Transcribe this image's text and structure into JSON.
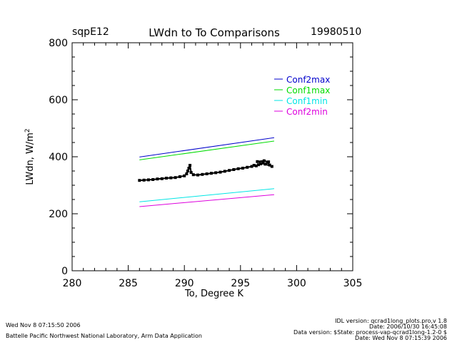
{
  "header": {
    "site": "sqpE12",
    "title": "LWdn to To Comparisons",
    "date": "19980510"
  },
  "footer": {
    "left_line1": "Wed Nov  8 07:15:50 2006",
    "left_line2": "Battelle Pacific Northwest National Laboratory, Arm Data Application",
    "right_line1": "IDL version: qcrad1long_plots.pro,v 1.8",
    "right_line2": "Date: 2006/10/30 16:45:08",
    "right_line3": "Data version: $State: process-vap-qcrad1long-1.2-0 $",
    "right_line4": "Date: Wed Nov  8 07:15:39 2006"
  },
  "chart_data": {
    "type": "scatter",
    "title": "LWdn to To Comparisons",
    "xlabel": "To, Degree K",
    "ylabel": "LWdn, W/m",
    "ylabel_superscript": "2",
    "xlim": [
      280,
      305
    ],
    "ylim": [
      0,
      800
    ],
    "xticks": [
      280,
      285,
      290,
      295,
      300,
      305
    ],
    "yticks": [
      0,
      200,
      400,
      600,
      800
    ],
    "grid": false,
    "legend_position": "top-right",
    "lines": [
      {
        "name": "Conf2max",
        "color": "#0000cc",
        "x": [
          286,
          298
        ],
        "y": [
          399,
          467
        ]
      },
      {
        "name": "Conf1max",
        "color": "#00dd00",
        "x": [
          286,
          298
        ],
        "y": [
          389,
          455
        ]
      },
      {
        "name": "Conf1min",
        "color": "#00e5e5",
        "x": [
          286,
          298
        ],
        "y": [
          242,
          288
        ]
      },
      {
        "name": "Conf2min",
        "color": "#dd00dd",
        "x": [
          286,
          298
        ],
        "y": [
          225,
          267
        ]
      }
    ],
    "observations": {
      "color": "#000000",
      "x": [
        286.0,
        286.4,
        286.8,
        287.2,
        287.6,
        288.0,
        288.4,
        288.8,
        289.2,
        289.6,
        290.0,
        290.2,
        290.3,
        290.4,
        290.5,
        290.6,
        290.8,
        291.2,
        291.6,
        292.0,
        292.4,
        292.8,
        293.2,
        293.6,
        294.0,
        294.4,
        294.8,
        295.2,
        295.6,
        296.0,
        296.2,
        296.4,
        296.6,
        296.8,
        297.0,
        297.2,
        297.4,
        297.6,
        297.8,
        296.5,
        297.1,
        297.5
      ],
      "y": [
        317,
        318,
        319,
        320,
        322,
        323,
        325,
        326,
        327,
        330,
        333,
        340,
        350,
        360,
        370,
        345,
        337,
        336,
        338,
        340,
        342,
        344,
        346,
        349,
        352,
        355,
        358,
        360,
        363,
        366,
        370,
        368,
        372,
        375,
        378,
        374,
        380,
        371,
        366,
        383,
        386,
        382
      ]
    }
  }
}
